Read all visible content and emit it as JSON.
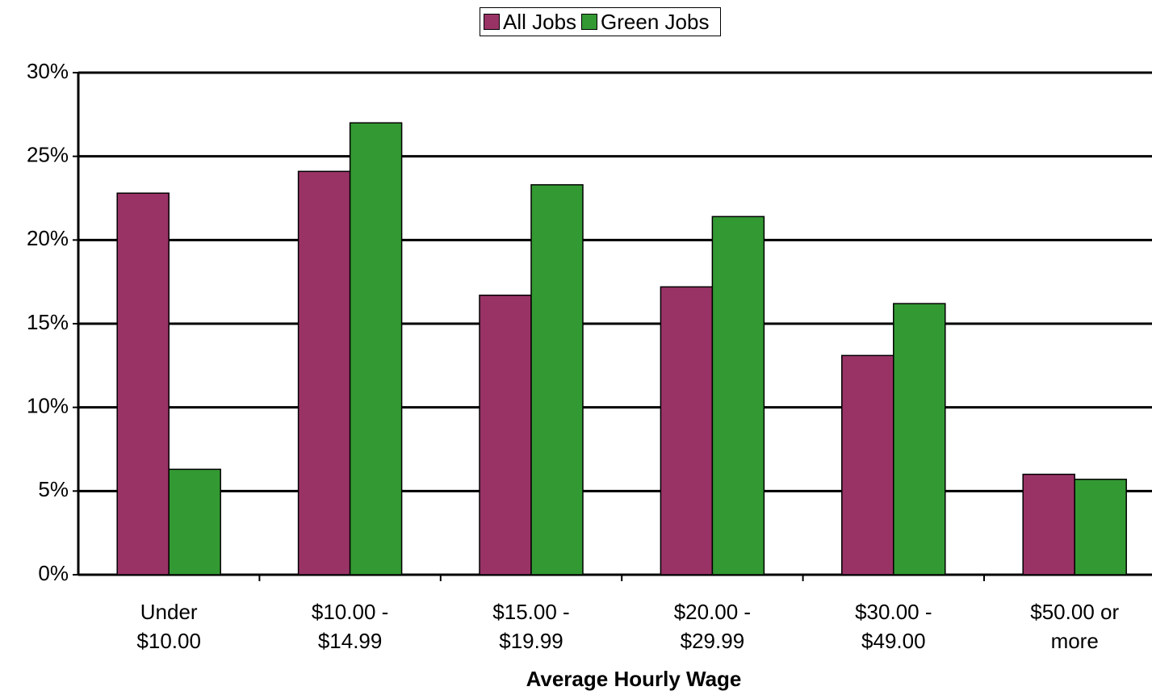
{
  "chart_data": {
    "type": "bar",
    "x_label": "Average Hourly Wage",
    "categories": [
      "Under $10.00",
      "$10.00 - $14.99",
      "$15.00 - $19.99",
      "$20.00 - $29.99",
      "$30.00 - $49.00",
      "$50.00 or more"
    ],
    "series": [
      {
        "name": "All Jobs",
        "color": "#993366",
        "values": [
          22.8,
          24.1,
          16.7,
          17.2,
          13.1,
          6.0
        ]
      },
      {
        "name": "Green Jobs",
        "color": "#339933",
        "values": [
          6.3,
          27.0,
          23.3,
          21.4,
          16.2,
          5.7
        ]
      }
    ],
    "ylim": [
      0,
      30
    ],
    "yticks": [
      {
        "value": 0,
        "label": "0%"
      },
      {
        "value": 5,
        "label": "5%"
      },
      {
        "value": 10,
        "label": "10%"
      },
      {
        "value": 15,
        "label": "15%"
      },
      {
        "value": 20,
        "label": "20%"
      },
      {
        "value": 25,
        "label": "25%"
      },
      {
        "value": 30,
        "label": "30%"
      }
    ],
    "grid": true
  }
}
